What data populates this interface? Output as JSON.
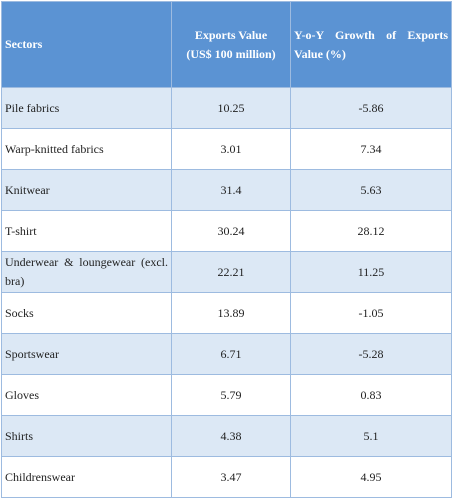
{
  "table": {
    "headers": {
      "sector": "Sectors",
      "value_line1": "Exports Value",
      "value_line2": "(US$ 100 million)",
      "growth_line1": "Y-o-Y Growth of Exports",
      "growth_line2": "Value (%)"
    },
    "rows": [
      {
        "sector": "Pile fabrics",
        "value": "10.25",
        "growth": "-5.86"
      },
      {
        "sector": "Warp-knitted fabrics",
        "value": "3.01",
        "growth": "7.34"
      },
      {
        "sector": "Knitwear",
        "value": "31.4",
        "growth": "5.63"
      },
      {
        "sector": "T-shirt",
        "value": "30.24",
        "growth": "28.12"
      },
      {
        "sector": "Underwear & loungewear (excl. bra)",
        "value": "22.21",
        "growth": "11.25"
      },
      {
        "sector": "Socks",
        "value": "13.89",
        "growth": "-1.05"
      },
      {
        "sector": "Sportswear",
        "value": "6.71",
        "growth": "-5.28"
      },
      {
        "sector": "Gloves",
        "value": "5.79",
        "growth": "0.83"
      },
      {
        "sector": "Shirts",
        "value": "4.38",
        "growth": "5.1"
      },
      {
        "sector": "Childrenswear",
        "value": "3.47",
        "growth": "4.95"
      }
    ]
  }
}
